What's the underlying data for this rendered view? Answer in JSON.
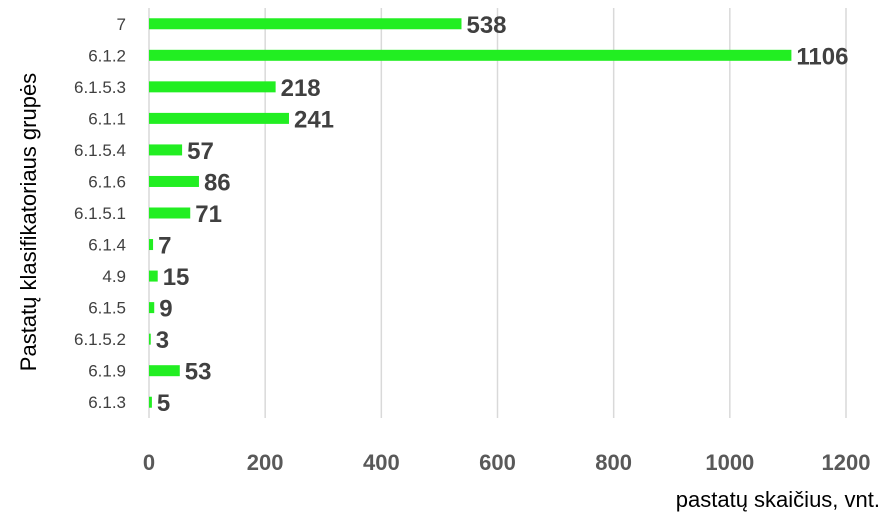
{
  "chart_data": {
    "type": "bar",
    "orientation": "horizontal",
    "categories": [
      "7",
      "6.1.2",
      "6.1.5.3",
      "6.1.1",
      "6.1.5.4",
      "6.1.6",
      "6.1.5.1",
      "6.1.4",
      "4.9",
      "6.1.5",
      "6.1.5.2",
      "6.1.9",
      "6.1.3"
    ],
    "values": [
      538,
      1106,
      218,
      241,
      57,
      86,
      71,
      7,
      15,
      9,
      3,
      53,
      5
    ],
    "title": "",
    "xlabel": "pastatų skaičius, vnt.",
    "ylabel": "Pastatų klasifikatoriaus grupės",
    "xlim": [
      0,
      1200
    ],
    "xticks": [
      0,
      200,
      400,
      600,
      800,
      1000,
      1200
    ],
    "grid": "vertical",
    "legend": "none",
    "data_labels": true
  },
  "colors": {
    "bar": "#22ee22",
    "grid": "#d9d9d9",
    "label_text": "#404040",
    "tick_text": "#595959"
  }
}
